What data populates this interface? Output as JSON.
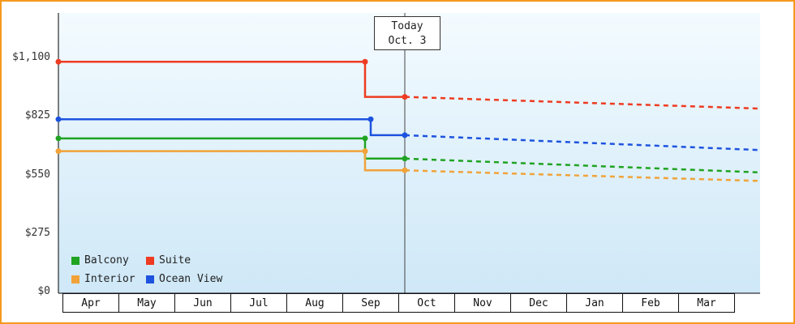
{
  "today_box": {
    "line1": "Today",
    "line2": "Oct. 3"
  },
  "legend_order": [
    "Balcony",
    "Suite",
    "Interior",
    "Ocean View"
  ],
  "chart_data": {
    "type": "line",
    "title": "",
    "x_categories": [
      "Apr",
      "May",
      "Jun",
      "Jul",
      "Aug",
      "Sep",
      "Oct",
      "Nov",
      "Dec",
      "Jan",
      "Feb",
      "Mar"
    ],
    "x_unit": "month index from Apr (0 = start of Apr, 1 = start of May)",
    "x_range": [
      0,
      12.36
    ],
    "ylim": [
      0,
      1100
    ],
    "y_tick_values": [
      0,
      275,
      550,
      825,
      1100
    ],
    "y_tick_labels": [
      "$0",
      "$275",
      "$550",
      "$825",
      "$1,100"
    ],
    "grid": false,
    "legend_position": "bottom-left-inside",
    "today_marker": {
      "label": "Today",
      "date": "Oct. 3",
      "x": 6.1
    },
    "series": [
      {
        "name": "Suite",
        "color": "#ee3b21",
        "solid": [
          [
            0,
            1080
          ],
          [
            5.4,
            1080
          ],
          [
            5.4,
            915
          ],
          [
            6.1,
            915
          ]
        ],
        "dashed_forecast": [
          [
            6.1,
            915
          ],
          [
            12.36,
            860
          ]
        ],
        "markers": [
          [
            0,
            1080
          ],
          [
            5.4,
            1080
          ],
          [
            6.1,
            915
          ]
        ]
      },
      {
        "name": "Ocean View",
        "color": "#1d53de",
        "solid": [
          [
            0,
            810
          ],
          [
            5.5,
            810
          ],
          [
            5.5,
            735
          ],
          [
            6.1,
            735
          ]
        ],
        "dashed_forecast": [
          [
            6.1,
            735
          ],
          [
            12.36,
            665
          ]
        ],
        "markers": [
          [
            0,
            810
          ],
          [
            5.5,
            810
          ],
          [
            6.1,
            735
          ]
        ]
      },
      {
        "name": "Balcony",
        "color": "#1fa321",
        "solid": [
          [
            0,
            720
          ],
          [
            5.4,
            720
          ],
          [
            5.4,
            625
          ],
          [
            6.1,
            625
          ]
        ],
        "dashed_forecast": [
          [
            6.1,
            625
          ],
          [
            12.36,
            560
          ]
        ],
        "markers": [
          [
            0,
            720
          ],
          [
            5.4,
            720
          ],
          [
            6.1,
            625
          ]
        ]
      },
      {
        "name": "Interior",
        "color": "#f1a33a",
        "solid": [
          [
            0,
            660
          ],
          [
            5.4,
            660
          ],
          [
            5.4,
            570
          ],
          [
            6.1,
            570
          ]
        ],
        "dashed_forecast": [
          [
            6.1,
            570
          ],
          [
            12.36,
            520
          ]
        ],
        "markers": [
          [
            0,
            660
          ],
          [
            5.4,
            660
          ],
          [
            6.1,
            570
          ]
        ]
      }
    ]
  }
}
